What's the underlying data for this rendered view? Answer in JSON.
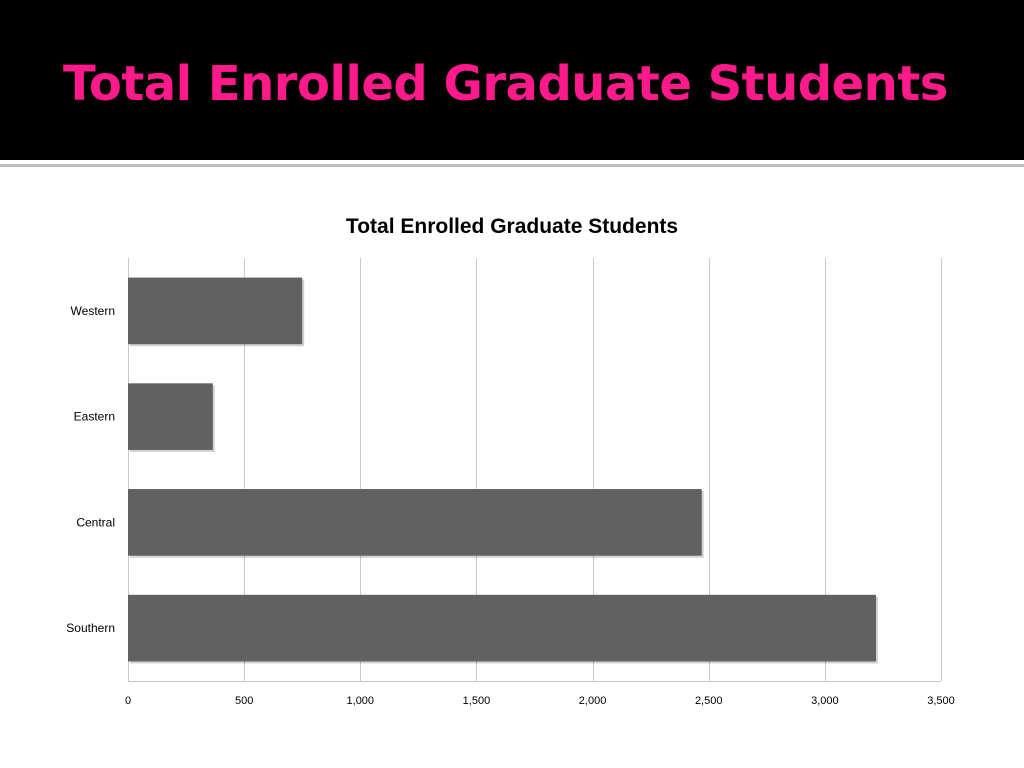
{
  "slide": {
    "title": "Total Enrolled Graduate Students",
    "header_bg": "#000000",
    "title_color": "#ff1a8c"
  },
  "chart_data": {
    "type": "bar",
    "orientation": "horizontal",
    "title": "Total Enrolled Graduate Students",
    "categories": [
      "Western",
      "Eastern",
      "Central",
      "Southern"
    ],
    "values": [
      750,
      365,
      2470,
      3220
    ],
    "xlim": [
      0,
      3500
    ],
    "xticks": [
      0,
      500,
      1000,
      1500,
      2000,
      2500,
      3000,
      3500
    ],
    "xtick_labels": [
      "0",
      "500",
      "1,000",
      "1,500",
      "2,000",
      "2,500",
      "3,000",
      "3,500"
    ],
    "grid": "vertical",
    "legend": "none",
    "bar_color": "#616161",
    "grid_color": "#c8c8c8"
  }
}
